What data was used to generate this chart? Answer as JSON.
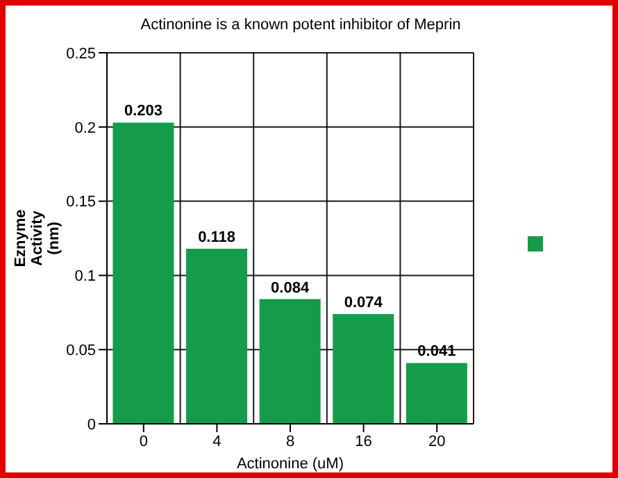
{
  "chart_data": {
    "type": "bar",
    "title": "Actinonine is a known potent inhibitor of Meprin",
    "xlabel": "Actinonine (uM)",
    "ylabel": "Eznyme Activity (nm)",
    "categories": [
      "0",
      "4",
      "8",
      "16",
      "20"
    ],
    "series": [
      {
        "color": "#149c4a",
        "values": [
          0.203,
          0.118,
          0.084,
          0.074,
          0.041
        ]
      }
    ],
    "ylim": [
      0,
      0.25
    ],
    "yticks": [
      0,
      0.05,
      0.1,
      0.15,
      0.2,
      0.25
    ],
    "grid": true,
    "data_labels": true
  }
}
